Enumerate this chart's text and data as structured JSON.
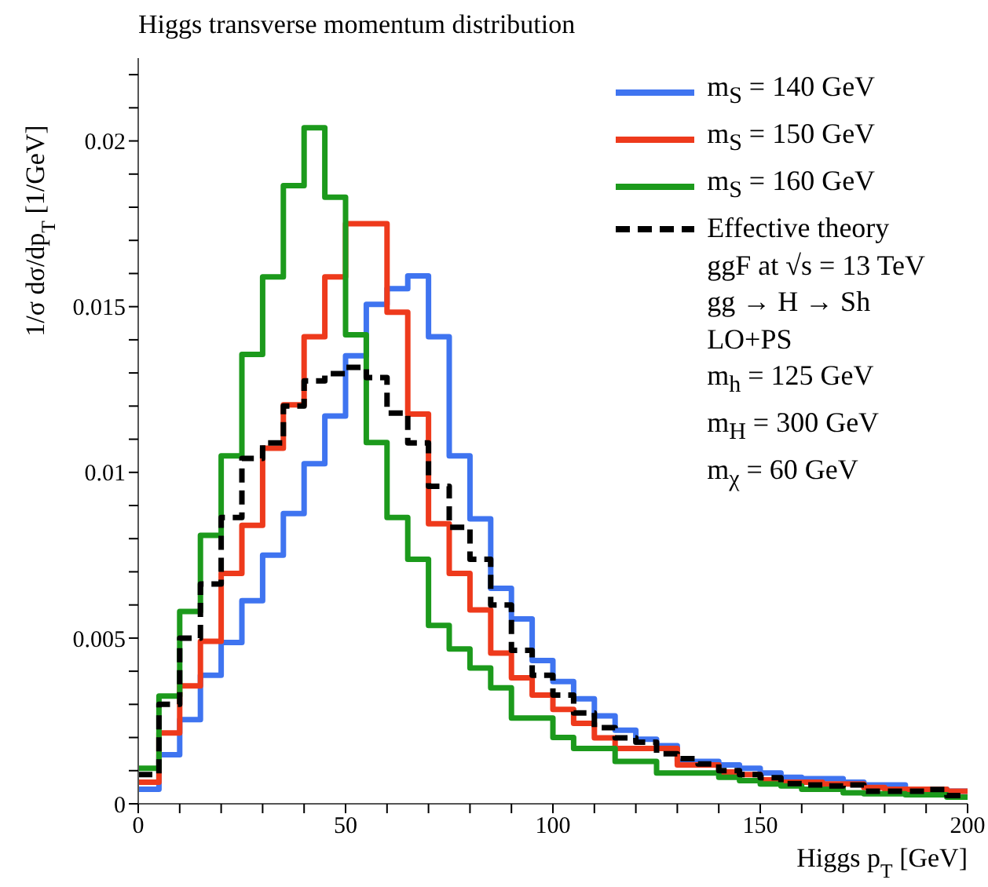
{
  "chart_data": {
    "type": "histogram",
    "title": "Higgs transverse momentum distribution",
    "xlabel": "Higgs p$_{T}$ [GeV]",
    "ylabel": "1/σ dσ/dp$_{T}$ [1/GeV]",
    "bins": [
      0,
      5,
      10,
      15,
      20,
      25,
      30,
      35,
      40,
      45,
      50,
      55,
      60,
      65,
      70,
      75,
      80,
      85,
      90,
      95,
      100,
      105,
      110,
      115,
      120,
      125,
      130,
      135,
      140,
      145,
      150,
      155,
      160,
      165,
      170,
      175,
      180,
      185,
      190,
      195,
      200
    ],
    "series": [
      {
        "name": "m$_{S}$ = 140 GeV",
        "color": "#3f74f0",
        "values": [
          0.00044,
          0.00148,
          0.00254,
          0.00388,
          0.00487,
          0.00613,
          0.0075,
          0.00876,
          0.01026,
          0.0117,
          0.01352,
          0.01507,
          0.01554,
          0.01593,
          0.01409,
          0.0105,
          0.0086,
          0.0065,
          0.00558,
          0.00432,
          0.00369,
          0.00317,
          0.00265,
          0.00222,
          0.00195,
          0.00175,
          0.00128,
          0.00128,
          0.00117,
          0.00107,
          0.00093,
          0.0008,
          0.00076,
          0.00076,
          0.00065,
          0.00057,
          0.00057,
          0.00044,
          0.00044,
          0.00038
        ]
      },
      {
        "name": "m$_{S}$ = 150 GeV",
        "color": "#ee3a1c",
        "values": [
          0.00065,
          0.00214,
          0.00356,
          0.0049,
          0.00695,
          0.0084,
          0.01073,
          0.01204,
          0.01409,
          0.0159,
          0.0175,
          0.0175,
          0.01483,
          0.01176,
          0.00845,
          0.00695,
          0.00585,
          0.00455,
          0.0038,
          0.00328,
          0.00285,
          0.00243,
          0.00199,
          0.00167,
          0.00167,
          0.00167,
          0.00117,
          0.00117,
          0.00096,
          0.00088,
          0.00072,
          0.00065,
          0.00065,
          0.0006,
          0.0006,
          0.00049,
          0.00044,
          0.00044,
          0.00044,
          0.00038
        ]
      },
      {
        "name": "m$_{S}$ = 160 GeV",
        "color": "#1c9a1c",
        "values": [
          0.00107,
          0.00325,
          0.0058,
          0.0081,
          0.0105,
          0.01356,
          0.0159,
          0.01865,
          0.0204,
          0.0183,
          0.01415,
          0.0109,
          0.00864,
          0.00738,
          0.00538,
          0.00467,
          0.0041,
          0.0035,
          0.00259,
          0.00259,
          0.002,
          0.00167,
          0.00167,
          0.00128,
          0.00128,
          0.00093,
          0.00093,
          0.00093,
          0.0008,
          0.0007,
          0.0006,
          0.00054,
          0.00044,
          0.00044,
          0.00033,
          0.0003,
          0.0003,
          0.00027,
          0.00027,
          0.0002
        ]
      },
      {
        "name": "Effective theory",
        "color": "#000000",
        "line_style": "dashed",
        "values": [
          0.00088,
          0.003,
          0.005,
          0.00663,
          0.00864,
          0.01042,
          0.01089,
          0.012,
          0.01276,
          0.01298,
          0.01317,
          0.01286,
          0.01179,
          0.01089,
          0.00958,
          0.00834,
          0.00738,
          0.006,
          0.00463,
          0.00388,
          0.00328,
          0.00274,
          0.0023,
          0.00199,
          0.00186,
          0.00151,
          0.00136,
          0.0012,
          0.001,
          0.00088,
          0.00079,
          0.00061,
          0.00057,
          0.00054,
          0.00057,
          0.00038,
          0.00038,
          0.00038,
          0.00043,
          0.00025
        ]
      }
    ],
    "xlim": [
      0,
      200
    ],
    "xticks": [
      0,
      {
        "value": 10,
        "label": null
      },
      {
        "value": 20,
        "label": null
      },
      {
        "value": 30,
        "label": null
      },
      {
        "value": 40,
        "label": null
      },
      50,
      {
        "value": 60,
        "label": null
      },
      {
        "value": 70,
        "label": null
      },
      {
        "value": 80,
        "label": null
      },
      {
        "value": 90,
        "label": null
      },
      100,
      {
        "value": 110,
        "label": null
      },
      {
        "value": 120,
        "label": null
      },
      {
        "value": 130,
        "label": null
      },
      {
        "value": 140,
        "label": null
      },
      150,
      {
        "value": 160,
        "label": null
      },
      {
        "value": 170,
        "label": null
      },
      {
        "value": 180,
        "label": null
      },
      {
        "value": 190,
        "label": null
      },
      200
    ],
    "ylim": [
      0,
      0.0225
    ],
    "yticks": [
      0,
      {
        "value": 0.001,
        "label": null
      },
      {
        "value": 0.002,
        "label": null
      },
      {
        "value": 0.003,
        "label": null
      },
      {
        "value": 0.004,
        "label": null
      },
      0.005,
      {
        "value": 0.006,
        "label": null
      },
      {
        "value": 0.007,
        "label": null
      },
      {
        "value": 0.008,
        "label": null
      },
      {
        "value": 0.009,
        "label": null
      },
      0.01,
      {
        "value": 0.011,
        "label": null
      },
      {
        "value": 0.012,
        "label": null
      },
      {
        "value": 0.013,
        "label": null
      },
      {
        "value": 0.014,
        "label": null
      },
      0.015,
      {
        "value": 0.016,
        "label": null
      },
      {
        "value": 0.017,
        "label": null
      },
      {
        "value": 0.018,
        "label": null
      },
      {
        "value": 0.019,
        "label": null
      },
      0.02,
      {
        "value": 0.021,
        "label": null
      },
      {
        "value": 0.022,
        "label": null
      }
    ],
    "grid": false,
    "legend": "top right",
    "marker": "none",
    "annotations": [
      "ggF at √s = 13 TeV",
      "gg → H → Sh",
      "LO+PS",
      "m$_{h}$ = 125 GeV",
      "m$_{H}$ = 300 GeV",
      "m$_{χ}$ = 60 GeV"
    ]
  }
}
